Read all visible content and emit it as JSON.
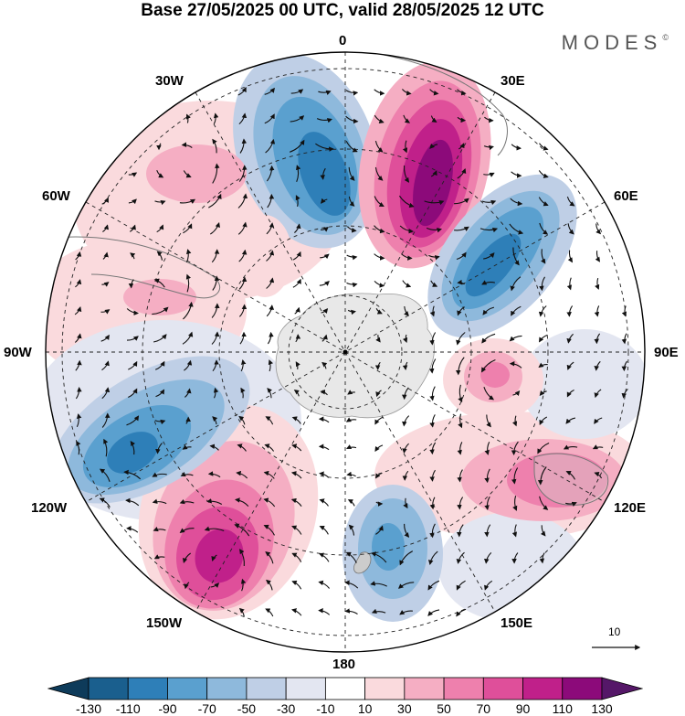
{
  "title": "Base 27/05/2025 00 UTC, valid 28/05/2025 12 UTC",
  "logo": "MODES",
  "logo_mark": "©",
  "lon_labels": {
    "l0": "0",
    "l30e": "30E",
    "l60e": "60E",
    "l90e": "90E",
    "l120e": "120E",
    "l150e": "150E",
    "l180": "180",
    "l150w": "150W",
    "l120w": "120W",
    "l90w": "90W",
    "l60w": "60W",
    "l30w": "30W"
  },
  "reference_vector": "10",
  "colorbar": {
    "ticks": [
      "-130",
      "-110",
      "-90",
      "-70",
      "-50",
      "-30",
      "-10",
      "10",
      "30",
      "50",
      "70",
      "90",
      "110",
      "130"
    ],
    "colors": [
      "#0e3b5a",
      "#1a5f8e",
      "#2e7fb8",
      "#5aa0cf",
      "#8eb9dc",
      "#bfcfe6",
      "#e3e6f1",
      "#ffffff",
      "#fadadd",
      "#f5aec3",
      "#ee80ad",
      "#df4f9a",
      "#c0208a",
      "#8c0a7a",
      "#551768"
    ]
  }
}
